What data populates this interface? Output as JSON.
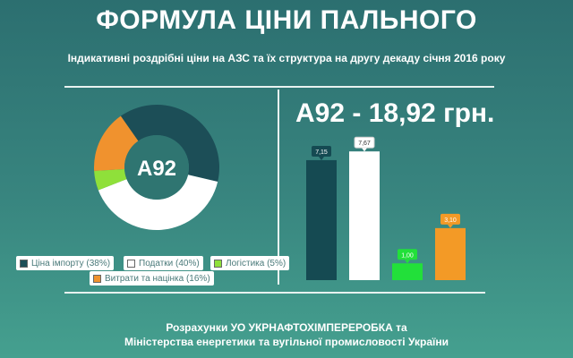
{
  "header": {
    "title": "ФОРМУЛА ЦІНИ ПАЛЬНОГО",
    "subtitle": "Індикативні роздрібні ціни на АЗС  та їх структура на другу декаду січня 2016 року"
  },
  "donut": {
    "center_label": "A92"
  },
  "price_label": "A92 - 18,92 грн.",
  "legend": [
    {
      "label": "Ціна імпорту (38%)",
      "color": "#1c4e57"
    },
    {
      "label": "Податки (40%)",
      "color": "#ffffff"
    },
    {
      "label": "Логістика (5%)",
      "color": "#8fe03a"
    },
    {
      "label": "Витрати та націнка (16%)",
      "color": "#f0922e"
    }
  ],
  "footer": {
    "line1": "Розрахунки УО УКРНАФТОХІМПЕРЕРОБКА та",
    "line2": "Міністерства енергетики та вугільної промисловості України"
  },
  "chart_data": [
    {
      "type": "pie",
      "title": "",
      "categories": [
        "Ціна імпорту",
        "Податки",
        "Логістика",
        "Витрати та націнка"
      ],
      "values": [
        38,
        40,
        5,
        16
      ],
      "colors": [
        "#1c4e57",
        "#ffffff",
        "#8fe03a",
        "#f0922e"
      ],
      "center_label": "A92"
    },
    {
      "type": "bar",
      "title": "A92 - 18,92 грн.",
      "categories": [
        "Ціна імпорту",
        "Податки",
        "Логістика",
        "Витрати та націнка"
      ],
      "values": [
        7.15,
        7.67,
        1.0,
        3.1
      ],
      "labels": [
        "7,15",
        "7,67",
        "1,00",
        "3,10"
      ],
      "colors": [
        "#154a52",
        "#ffffff",
        "#22e03a",
        "#f39a26"
      ],
      "ylim": [
        0,
        8
      ]
    }
  ]
}
